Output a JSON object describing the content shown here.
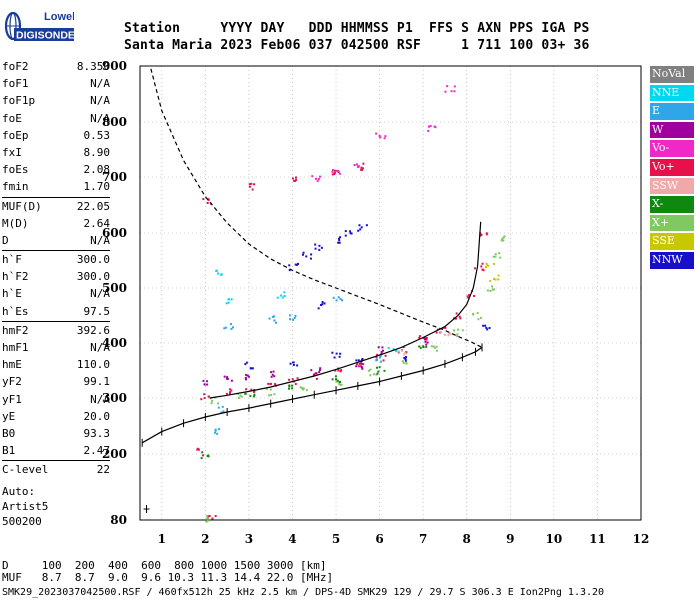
{
  "header": {
    "col_station": "Station",
    "col_date": "YYYY DAY",
    "col_rest": "DDD HHMMSS P1  FFS S AXN PPS IGA PS",
    "station": "Santa Maria",
    "date": "2023 Feb06",
    "values": "037 042500 RSF     1 711 100 03+ 36"
  },
  "logo": {
    "line1": "Lowell",
    "line2": "DIGISONDE",
    "color": "#1a3c9a"
  },
  "params": {
    "group1": [
      {
        "label": "foF2",
        "value": "8.350"
      },
      {
        "label": "foF1",
        "value": "N/A"
      },
      {
        "label": "foF1p",
        "value": "N/A"
      },
      {
        "label": "foE",
        "value": "N/A"
      },
      {
        "label": "foEp",
        "value": "0.53"
      },
      {
        "label": "fxI",
        "value": "8.90"
      },
      {
        "label": "foEs",
        "value": "2.08"
      },
      {
        "label": "fmin",
        "value": "1.70"
      }
    ],
    "group2": [
      {
        "label": "MUF(D)",
        "value": "22.05"
      },
      {
        "label": "M(D)",
        "value": "2.64"
      },
      {
        "label": "D",
        "value": "N/A"
      }
    ],
    "group3": [
      {
        "label": "h`F",
        "value": "300.0"
      },
      {
        "label": "h`F2",
        "value": "300.0"
      },
      {
        "label": "h`E",
        "value": "N/A"
      },
      {
        "label": "h`Es",
        "value": "97.5"
      }
    ],
    "group4": [
      {
        "label": "hmF2",
        "value": "392.6"
      },
      {
        "label": "hmF1",
        "value": "N/A"
      },
      {
        "label": "hmE",
        "value": "110.0"
      },
      {
        "label": "yF2",
        "value": "99.1"
      },
      {
        "label": "yF1",
        "value": "N/A"
      },
      {
        "label": "yE",
        "value": "20.0"
      },
      {
        "label": "B0",
        "value": "93.3"
      },
      {
        "label": "B1",
        "value": "2.47"
      }
    ],
    "group5": [
      {
        "label": "C-level",
        "value": "22"
      }
    ]
  },
  "auto": {
    "line1": "Auto:",
    "line2": "Artist5",
    "line3": "500200"
  },
  "legend": [
    {
      "label": "NoVal",
      "color": "#808080"
    },
    {
      "label": "NNE",
      "color": "#00d8f0"
    },
    {
      "label": "E",
      "color": "#2ea6e8"
    },
    {
      "label": "W",
      "color": "#a0009c"
    },
    {
      "label": "Vo-",
      "color": "#f028c8"
    },
    {
      "label": "Vo+",
      "color": "#e8104a"
    },
    {
      "label": "SSW",
      "color": "#f0a8a8"
    },
    {
      "label": "X-",
      "color": "#108810"
    },
    {
      "label": "X+",
      "color": "#80c860"
    },
    {
      "label": "SSE",
      "color": "#c8c800"
    },
    {
      "label": "NNW",
      "color": "#1810c8"
    }
  ],
  "bottom": {
    "d_line": "D     100  200  400  600  800 1000 1500 3000 [km]",
    "muf_line": "MUF   8.7  8.7  9.0  9.6 10.3 11.3 14.4 22.0 [MHz]"
  },
  "footer": "SMK29_2023037042500.RSF / 460fx512h 25 kHz 2.5 km / DPS-4D SMK29 129 / 29.7 S 306.3 E Ion2Png 1.3.20",
  "chart_data": {
    "type": "scatter",
    "xlabel": "",
    "ylabel": "",
    "xlim": [
      0.5,
      12
    ],
    "ylim": [
      80,
      900
    ],
    "x_ticks": [
      1,
      2,
      3,
      4,
      5,
      6,
      7,
      8,
      9,
      10,
      11,
      12
    ],
    "y_ticks": [
      80,
      200,
      300,
      400,
      500,
      600,
      700,
      800,
      900
    ],
    "grid": true,
    "series": [
      {
        "name": "Vo+",
        "color": "#e8104a",
        "points": [
          [
            2.0,
            305
          ],
          [
            2.5,
            312
          ],
          [
            3.0,
            318
          ],
          [
            3.5,
            325
          ],
          [
            4.0,
            332
          ],
          [
            4.5,
            342
          ],
          [
            5.0,
            352
          ],
          [
            5.5,
            362
          ],
          [
            6.0,
            375
          ],
          [
            6.5,
            390
          ],
          [
            7.0,
            408
          ],
          [
            7.4,
            426
          ],
          [
            7.8,
            452
          ],
          [
            8.1,
            490
          ],
          [
            8.25,
            540
          ],
          [
            8.35,
            600
          ],
          [
            2.0,
            660
          ],
          [
            3.0,
            685
          ],
          [
            4.0,
            695
          ],
          [
            5.0,
            710
          ],
          [
            5.5,
            720
          ],
          [
            1.9,
            205
          ],
          [
            2.1,
            88
          ]
        ]
      },
      {
        "name": "X+",
        "color": "#80c860",
        "points": [
          [
            2.2,
            298
          ],
          [
            2.8,
            304
          ],
          [
            3.5,
            312
          ],
          [
            4.2,
            320
          ],
          [
            5.0,
            332
          ],
          [
            5.8,
            348
          ],
          [
            6.5,
            368
          ],
          [
            7.2,
            392
          ],
          [
            7.8,
            420
          ],
          [
            8.2,
            450
          ],
          [
            8.5,
            500
          ],
          [
            8.7,
            560
          ],
          [
            8.75,
            590
          ],
          [
            1.95,
            84
          ]
        ]
      },
      {
        "name": "NNW",
        "color": "#1810c8",
        "points": [
          [
            4.0,
            540
          ],
          [
            4.3,
            560
          ],
          [
            4.6,
            575
          ],
          [
            5.0,
            590
          ],
          [
            5.3,
            600
          ],
          [
            5.6,
            610
          ],
          [
            4.6,
            470
          ],
          [
            5.0,
            380
          ],
          [
            5.5,
            375
          ],
          [
            6.5,
            372
          ],
          [
            3.0,
            360
          ],
          [
            4.0,
            365
          ],
          [
            8.4,
            430
          ]
        ]
      },
      {
        "name": "W",
        "color": "#a0009c",
        "points": [
          [
            2.0,
            328
          ],
          [
            2.5,
            335
          ],
          [
            3.0,
            340
          ],
          [
            3.5,
            345
          ],
          [
            4.5,
            350
          ],
          [
            5.5,
            360
          ],
          [
            6.0,
            388
          ],
          [
            7.0,
            405
          ]
        ]
      },
      {
        "name": "Vo-",
        "color": "#f028c8",
        "points": [
          [
            4.5,
            700
          ],
          [
            5.0,
            712
          ],
          [
            5.5,
            722
          ],
          [
            6.0,
            778
          ],
          [
            7.2,
            790
          ],
          [
            7.6,
            860
          ]
        ]
      },
      {
        "name": "E",
        "color": "#2ea6e8",
        "points": [
          [
            2.5,
            430
          ],
          [
            3.5,
            445
          ],
          [
            4.0,
            450
          ],
          [
            5.0,
            480
          ],
          [
            6.0,
            372
          ],
          [
            2.3,
            280
          ],
          [
            2.3,
            240
          ]
        ]
      },
      {
        "name": "NNE",
        "color": "#00d8f0",
        "points": [
          [
            2.3,
            530
          ],
          [
            2.5,
            480
          ],
          [
            3.7,
            490
          ],
          [
            6.3,
            390
          ]
        ]
      },
      {
        "name": "X-",
        "color": "#108810",
        "points": [
          [
            3.0,
            310
          ],
          [
            4.0,
            322
          ],
          [
            5.0,
            335
          ],
          [
            6.0,
            352
          ],
          [
            7.0,
            392
          ],
          [
            2.0,
            200
          ]
        ]
      },
      {
        "name": "SSE",
        "color": "#c8c800",
        "points": [
          [
            8.5,
            540
          ],
          [
            8.6,
            520
          ]
        ]
      },
      {
        "name": "SSW",
        "color": "#f0a8a8",
        "points": [
          [
            6.5,
            385
          ],
          [
            7.5,
            420
          ]
        ]
      }
    ],
    "profile_curve": {
      "x": [
        0.55,
        1.0,
        1.5,
        2.0,
        2.5,
        3.0,
        3.5,
        4.0,
        4.5,
        5.0,
        5.5,
        6.0,
        6.5,
        7.0,
        7.5,
        7.9,
        8.2,
        8.35
      ],
      "y": [
        220,
        240,
        255,
        266,
        275,
        282,
        290,
        298,
        306,
        314,
        322,
        330,
        340,
        350,
        362,
        374,
        384,
        392
      ]
    },
    "trace_curve": {
      "x": [
        2.1,
        2.5,
        3.0,
        3.5,
        4.0,
        4.5,
        5.0,
        5.5,
        6.0,
        6.5,
        7.0,
        7.5,
        7.8,
        8.0,
        8.15,
        8.25,
        8.32
      ],
      "y": [
        300,
        305,
        312,
        320,
        330,
        340,
        352,
        365,
        378,
        392,
        410,
        430,
        450,
        470,
        500,
        540,
        620
      ]
    },
    "muf_curve": {
      "x": [
        0.75,
        1.0,
        1.5,
        2.0,
        2.5,
        3.0,
        3.5,
        4.0,
        4.5,
        5.0,
        5.5,
        6.0,
        6.5,
        7.0,
        7.5,
        7.8,
        8.1,
        8.35
      ],
      "y": [
        895,
        820,
        730,
        665,
        618,
        580,
        553,
        532,
        515,
        500,
        485,
        470,
        454,
        438,
        423,
        412,
        402,
        392
      ]
    },
    "extra_marks": {
      "x": [
        0.65
      ],
      "y": [
        100
      ]
    }
  }
}
